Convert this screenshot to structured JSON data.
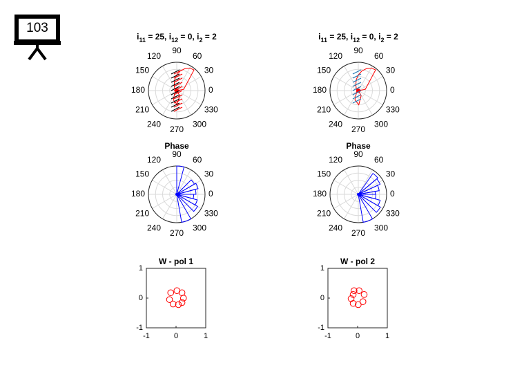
{
  "badge": {
    "number": "103",
    "icon": "presentation-board-icon"
  },
  "chart_data": [
    {
      "type": "polar",
      "title_parts": [
        "i",
        "11",
        " = 25, i",
        "12",
        " = 0, i",
        "2",
        " = 2"
      ],
      "angle_ticks": [
        "0",
        "30",
        "60",
        "90",
        "120",
        "150",
        "180",
        "210",
        "240",
        "270",
        "300",
        "330"
      ],
      "series": [
        {
          "style": "red-teardrop-loop",
          "r": [
            0.25,
            0.95,
            0.92,
            0.82,
            0.7,
            0.55,
            0.4,
            0.25,
            0.12,
            0.05
          ],
          "theta_deg": [
            10,
            50,
            60,
            70,
            80,
            90,
            100,
            110,
            130,
            180
          ]
        },
        {
          "style": "hatch",
          "color": "#000000",
          "count": 10
        },
        {
          "style": "hatch",
          "color": "#ff0000",
          "count": 10
        }
      ]
    },
    {
      "type": "polar",
      "title_parts": [
        "i",
        "11",
        " = 25, i",
        "12",
        " = 0, i",
        "2",
        " = 2"
      ],
      "angle_ticks": [
        "0",
        "30",
        "60",
        "90",
        "120",
        "150",
        "180",
        "210",
        "240",
        "270",
        "300",
        "330"
      ],
      "series": [
        {
          "style": "red-teardrop-loop",
          "r": [
            0.25,
            0.95,
            0.92,
            0.82,
            0.7,
            0.55,
            0.4,
            0.25,
            0.12,
            0.05
          ],
          "theta_deg": [
            10,
            50,
            60,
            70,
            80,
            90,
            100,
            110,
            130,
            180
          ]
        },
        {
          "style": "hatch",
          "color": "#1f77b4",
          "count": 8
        }
      ]
    },
    {
      "type": "polar-histogram",
      "title": "Phase",
      "angle_ticks": [
        "0",
        "30",
        "60",
        "90",
        "120",
        "150",
        "180",
        "210",
        "240",
        "270",
        "300",
        "330"
      ],
      "bins_deg": [
        [
          75,
          90
        ],
        [
          30,
          45
        ],
        [
          15,
          30
        ],
        [
          0,
          15
        ],
        [
          345,
          360
        ],
        [
          330,
          345
        ],
        [
          315,
          330
        ],
        [
          280,
          300
        ]
      ],
      "bin_r": [
        1.0,
        0.72,
        0.78,
        0.68,
        0.6,
        0.75,
        0.85,
        1.0
      ]
    },
    {
      "type": "polar-histogram",
      "title": "Phase",
      "angle_ticks": [
        "0",
        "30",
        "60",
        "90",
        "120",
        "150",
        "180",
        "210",
        "240",
        "270",
        "300",
        "330"
      ],
      "bins_deg": [
        [
          40,
          55
        ],
        [
          25,
          40
        ],
        [
          10,
          25
        ],
        [
          0,
          10
        ],
        [
          345,
          360
        ],
        [
          330,
          345
        ],
        [
          315,
          330
        ],
        [
          280,
          300
        ]
      ],
      "bin_r": [
        0.9,
        0.85,
        0.75,
        0.6,
        0.62,
        0.8,
        0.9,
        1.0
      ]
    },
    {
      "type": "scatter",
      "title": "W - pol 1",
      "xlim": [
        -1,
        1
      ],
      "ylim": [
        -1,
        1
      ],
      "xticks": [
        "-1",
        "0",
        "1"
      ],
      "yticks": [
        "-1",
        "0",
        "1"
      ],
      "points": [
        [
          -0.18,
          0.18
        ],
        [
          0.03,
          0.25
        ],
        [
          0.2,
          0.18
        ],
        [
          0.25,
          0.0
        ],
        [
          0.2,
          -0.15
        ],
        [
          0.08,
          -0.22
        ],
        [
          -0.1,
          -0.2
        ],
        [
          -0.22,
          -0.05
        ]
      ]
    },
    {
      "type": "scatter",
      "title": "W - pol 2",
      "xlim": [
        -1,
        1
      ],
      "ylim": [
        -1,
        1
      ],
      "xticks": [
        "-1",
        "0",
        "1"
      ],
      "yticks": [
        "-1",
        "0",
        "1"
      ],
      "points": [
        [
          -0.12,
          0.25
        ],
        [
          0.05,
          0.25
        ],
        [
          0.22,
          0.12
        ],
        [
          0.18,
          -0.12
        ],
        [
          0.02,
          -0.22
        ],
        [
          -0.15,
          -0.18
        ],
        [
          -0.22,
          -0.02
        ],
        [
          -0.15,
          0.12
        ]
      ]
    }
  ]
}
